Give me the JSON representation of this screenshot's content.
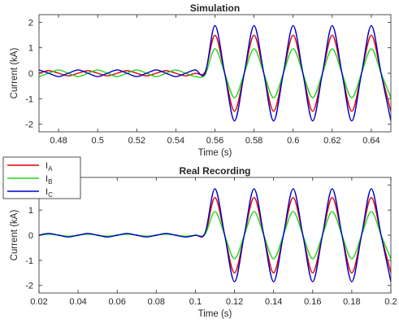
{
  "chart_data": [
    {
      "type": "line",
      "title": "Simulation",
      "xlabel": "Time (s)",
      "ylabel": "Current (kA)",
      "xlim": [
        0.47,
        0.65
      ],
      "ylim": [
        -2.3,
        2.3
      ],
      "xticks": [
        0.48,
        0.5,
        0.52,
        0.54,
        0.56,
        0.58,
        0.6,
        0.62,
        0.64
      ],
      "xtick_labels": [
        "0.48",
        "0.5",
        "0.52",
        "0.54",
        "0.56",
        "0.58",
        "0.6",
        "0.62",
        "0.64"
      ],
      "yticks": [
        -2,
        -1,
        0,
        1,
        2
      ],
      "ytick_labels": [
        "-2",
        "-1",
        "0",
        "1",
        "2"
      ],
      "grid": false,
      "series": [
        {
          "name": "I_A",
          "color": "#e00000",
          "x": [
            0.47,
            0.475,
            0.48,
            0.485,
            0.49,
            0.495,
            0.5,
            0.505,
            0.51,
            0.515,
            0.52,
            0.525,
            0.53,
            0.535,
            0.54,
            0.545,
            0.55,
            0.555,
            0.56,
            0.565,
            0.57,
            0.575,
            0.58,
            0.585,
            0.59,
            0.595,
            0.6,
            0.605,
            0.61,
            0.615,
            0.62,
            0.625,
            0.63,
            0.635,
            0.64,
            0.645,
            0.65
          ],
          "y": [
            0.0,
            0.1,
            0.0,
            -0.1,
            0.0,
            0.1,
            0.0,
            -0.1,
            0.0,
            0.1,
            0.0,
            -0.1,
            0.0,
            0.1,
            0.0,
            -0.1,
            0.0,
            0.06,
            1.49,
            0.0,
            -1.49,
            0.0,
            1.49,
            0.0,
            -1.49,
            0.0,
            1.49,
            0.0,
            -1.49,
            0.0,
            1.49,
            0.0,
            -1.49,
            0.0,
            1.49,
            0.0,
            -1.49
          ]
        },
        {
          "name": "I_B",
          "color": "#1ed61e",
          "x": [
            0.47,
            0.475,
            0.48,
            0.485,
            0.49,
            0.495,
            0.5,
            0.505,
            0.51,
            0.515,
            0.52,
            0.525,
            0.53,
            0.535,
            0.54,
            0.545,
            0.55,
            0.555,
            0.56,
            0.565,
            0.57,
            0.575,
            0.58,
            0.585,
            0.59,
            0.595,
            0.6,
            0.605,
            0.61,
            0.615,
            0.62,
            0.625,
            0.63,
            0.635,
            0.64,
            0.645,
            0.65
          ],
          "y": [
            -0.13,
            0.0,
            0.13,
            0.0,
            -0.13,
            0.0,
            0.13,
            0.0,
            -0.13,
            0.0,
            0.13,
            0.0,
            -0.13,
            0.0,
            0.13,
            0.0,
            -0.13,
            -0.05,
            0.96,
            0.0,
            -0.96,
            0.0,
            0.96,
            0.0,
            -0.96,
            0.0,
            0.96,
            0.0,
            -0.96,
            0.0,
            0.96,
            0.0,
            -0.96,
            0.0,
            0.96,
            0.0,
            -0.96
          ]
        },
        {
          "name": "I_C",
          "color": "#0000c8",
          "x": [
            0.47,
            0.475,
            0.48,
            0.485,
            0.49,
            0.495,
            0.5,
            0.505,
            0.51,
            0.515,
            0.52,
            0.525,
            0.53,
            0.535,
            0.54,
            0.545,
            0.55,
            0.555,
            0.56,
            0.565,
            0.57,
            0.575,
            0.58,
            0.585,
            0.59,
            0.595,
            0.6,
            0.605,
            0.61,
            0.615,
            0.62,
            0.625,
            0.63,
            0.635,
            0.64,
            0.645,
            0.65
          ],
          "y": [
            0.13,
            0.0,
            -0.13,
            0.0,
            0.13,
            0.0,
            -0.13,
            0.0,
            0.13,
            0.0,
            -0.13,
            0.0,
            0.13,
            0.0,
            -0.13,
            0.0,
            0.13,
            0.0,
            1.87,
            0.0,
            -1.87,
            0.0,
            1.87,
            0.0,
            -1.87,
            0.0,
            1.87,
            0.0,
            -1.87,
            0.0,
            1.87,
            0.0,
            -1.87,
            0.0,
            1.87,
            0.0,
            -1.87
          ]
        }
      ]
    },
    {
      "type": "line",
      "title": "Real Recording",
      "xlabel": "Time (s)",
      "ylabel": "Current (kA)",
      "xlim": [
        0.02,
        0.2
      ],
      "ylim": [
        -2.3,
        2.3
      ],
      "xticks": [
        0.02,
        0.04,
        0.06,
        0.08,
        0.1,
        0.12,
        0.14,
        0.16,
        0.18,
        0.2
      ],
      "xtick_labels": [
        "0.02",
        "0.04",
        "0.06",
        "0.08",
        "0.1",
        "0.12",
        "0.14",
        "0.16",
        "0.18",
        "0.2"
      ],
      "yticks": [
        -2,
        -1,
        0,
        1,
        2
      ],
      "ytick_labels": [
        "-2",
        "-1",
        "0",
        "1",
        "2"
      ],
      "grid": false,
      "series": [
        {
          "name": "I_A",
          "color": "#e00000",
          "x": [
            0.02,
            0.025,
            0.03,
            0.035,
            0.04,
            0.045,
            0.05,
            0.055,
            0.06,
            0.065,
            0.07,
            0.075,
            0.08,
            0.085,
            0.09,
            0.095,
            0.1,
            0.105,
            0.11,
            0.115,
            0.12,
            0.125,
            0.13,
            0.135,
            0.14,
            0.145,
            0.15,
            0.155,
            0.16,
            0.165,
            0.17,
            0.175,
            0.18,
            0.185,
            0.19,
            0.195,
            0.2
          ],
          "y": [
            0.0,
            0.06,
            0.0,
            -0.06,
            0.0,
            0.06,
            0.0,
            -0.06,
            0.0,
            0.06,
            0.0,
            -0.06,
            0.0,
            0.06,
            0.0,
            -0.06,
            0.0,
            0.05,
            1.5,
            0.0,
            -1.5,
            0.0,
            1.5,
            0.0,
            -1.5,
            0.0,
            1.5,
            0.0,
            -1.5,
            0.0,
            1.5,
            0.0,
            -1.5,
            0.0,
            1.5,
            0.0,
            -1.5
          ]
        },
        {
          "name": "I_B",
          "color": "#1ed61e",
          "x": [
            0.02,
            0.025,
            0.03,
            0.035,
            0.04,
            0.045,
            0.05,
            0.055,
            0.06,
            0.065,
            0.07,
            0.075,
            0.08,
            0.085,
            0.09,
            0.095,
            0.1,
            0.105,
            0.11,
            0.115,
            0.12,
            0.125,
            0.13,
            0.135,
            0.14,
            0.145,
            0.15,
            0.155,
            0.16,
            0.165,
            0.17,
            0.175,
            0.18,
            0.185,
            0.19,
            0.195,
            0.2
          ],
          "y": [
            0.0,
            0.04,
            0.0,
            -0.04,
            0.0,
            0.04,
            0.0,
            -0.04,
            0.0,
            0.04,
            0.0,
            -0.04,
            0.0,
            0.04,
            0.0,
            -0.04,
            0.0,
            0.04,
            0.94,
            0.0,
            -0.94,
            0.0,
            0.94,
            0.0,
            -0.94,
            0.0,
            0.94,
            0.0,
            -0.94,
            0.0,
            0.94,
            0.0,
            -0.94,
            0.0,
            0.94,
            0.0,
            -0.94
          ]
        },
        {
          "name": "I_C",
          "color": "#0000c8",
          "x": [
            0.02,
            0.025,
            0.03,
            0.035,
            0.04,
            0.045,
            0.05,
            0.055,
            0.06,
            0.065,
            0.07,
            0.075,
            0.08,
            0.085,
            0.09,
            0.095,
            0.1,
            0.105,
            0.11,
            0.115,
            0.12,
            0.125,
            0.13,
            0.135,
            0.14,
            0.145,
            0.15,
            0.155,
            0.16,
            0.165,
            0.17,
            0.175,
            0.18,
            0.185,
            0.19,
            0.195,
            0.2
          ],
          "y": [
            0.0,
            0.07,
            0.0,
            -0.07,
            0.0,
            0.07,
            0.0,
            -0.07,
            0.0,
            0.07,
            0.0,
            -0.07,
            0.0,
            0.07,
            0.0,
            -0.07,
            0.0,
            0.1,
            1.85,
            0.0,
            -1.85,
            0.0,
            1.85,
            0.0,
            -1.85,
            0.0,
            1.85,
            0.0,
            -1.85,
            0.0,
            1.85,
            0.0,
            -1.85,
            0.0,
            1.85,
            0.0,
            -1.85
          ]
        }
      ]
    }
  ],
  "legend": {
    "placement": "between-panels-left",
    "entries": [
      {
        "base": "I",
        "sub": "A",
        "color": "#e00000"
      },
      {
        "base": "I",
        "sub": "B",
        "color": "#1ed61e"
      },
      {
        "base": "I",
        "sub": "C",
        "color": "#0000c8"
      }
    ]
  }
}
